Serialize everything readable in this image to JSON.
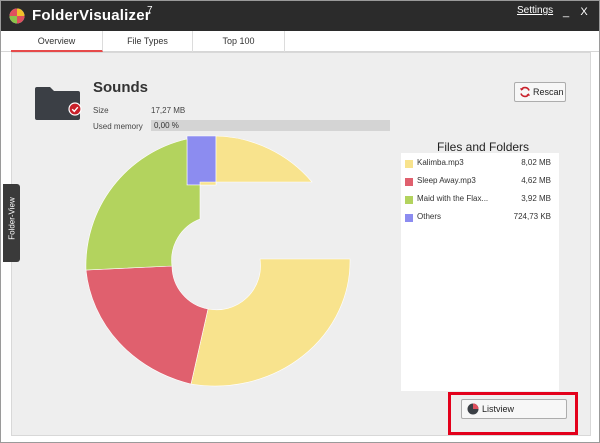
{
  "window": {
    "title": "FolderVisualizer",
    "version": "7",
    "settings_label": "Settings",
    "minimize_label": "_",
    "close_label": "X"
  },
  "tabs": [
    {
      "label": "Overview",
      "active": true
    },
    {
      "label": "File Types",
      "active": false
    },
    {
      "label": "Top 100",
      "active": false
    }
  ],
  "side_tab": {
    "label": "Folder-View"
  },
  "folder": {
    "name": "Sounds",
    "size_label": "Size",
    "size_value": "17,27 MB",
    "memory_label": "Used memory",
    "memory_value": "0,00 %",
    "memory_fraction": 0.0
  },
  "actions": {
    "rescan_label": "Rescan",
    "listview_label": "Listview"
  },
  "files": {
    "title": "Files and Folders",
    "items": [
      {
        "name": "Kalimba.mp3",
        "size": "8,02 MB",
        "color": "#f8e38d"
      },
      {
        "name": "Sleep Away.mp3",
        "size": "4,62 MB",
        "color": "#e0606e"
      },
      {
        "name": "Maid with the Flax...",
        "size": "3,92 MB",
        "color": "#b3d35e"
      },
      {
        "name": "Others",
        "size": "724,73 KB",
        "color": "#8c8cf0"
      }
    ]
  },
  "colors": {
    "titlebar": "#2b2b2b",
    "accent_tab": "#e64a4a",
    "highlight": "#e3001b"
  }
}
